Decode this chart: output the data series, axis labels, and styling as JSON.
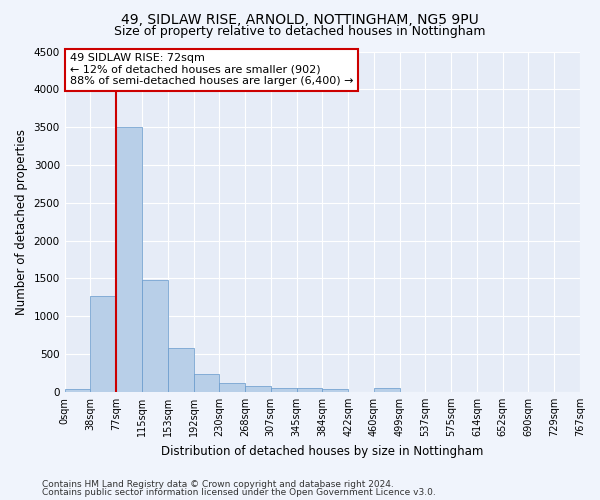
{
  "title": "49, SIDLAW RISE, ARNOLD, NOTTINGHAM, NG5 9PU",
  "subtitle": "Size of property relative to detached houses in Nottingham",
  "xlabel": "Distribution of detached houses by size in Nottingham",
  "ylabel": "Number of detached properties",
  "footnote1": "Contains HM Land Registry data © Crown copyright and database right 2024.",
  "footnote2": "Contains public sector information licensed under the Open Government Licence v3.0.",
  "bin_labels": [
    "0sqm",
    "38sqm",
    "77sqm",
    "115sqm",
    "153sqm",
    "192sqm",
    "230sqm",
    "268sqm",
    "307sqm",
    "345sqm",
    "384sqm",
    "422sqm",
    "460sqm",
    "499sqm",
    "537sqm",
    "575sqm",
    "614sqm",
    "652sqm",
    "690sqm",
    "729sqm",
    "767sqm"
  ],
  "bar_values": [
    40,
    1270,
    3500,
    1480,
    580,
    240,
    120,
    80,
    55,
    45,
    40,
    0,
    50,
    0,
    0,
    0,
    0,
    0,
    0,
    0
  ],
  "bar_color": "#b8cfe8",
  "bar_edge_color": "#6699cc",
  "annotation_text": "49 SIDLAW RISE: 72sqm\n← 12% of detached houses are smaller (902)\n88% of semi-detached houses are larger (6,400) →",
  "annotation_box_color": "#ffffff",
  "annotation_border_color": "#cc0000",
  "vline_color": "#cc0000",
  "vline_x": 2.0,
  "ylim": [
    0,
    4500
  ],
  "yticks": [
    0,
    500,
    1000,
    1500,
    2000,
    2500,
    3000,
    3500,
    4000,
    4500
  ],
  "bg_color": "#f0f4fc",
  "plot_bg_color": "#e6ecf7",
  "grid_color": "#ffffff",
  "title_fontsize": 10,
  "subtitle_fontsize": 9,
  "label_fontsize": 8.5,
  "tick_fontsize": 7.5,
  "footnote_fontsize": 6.5
}
